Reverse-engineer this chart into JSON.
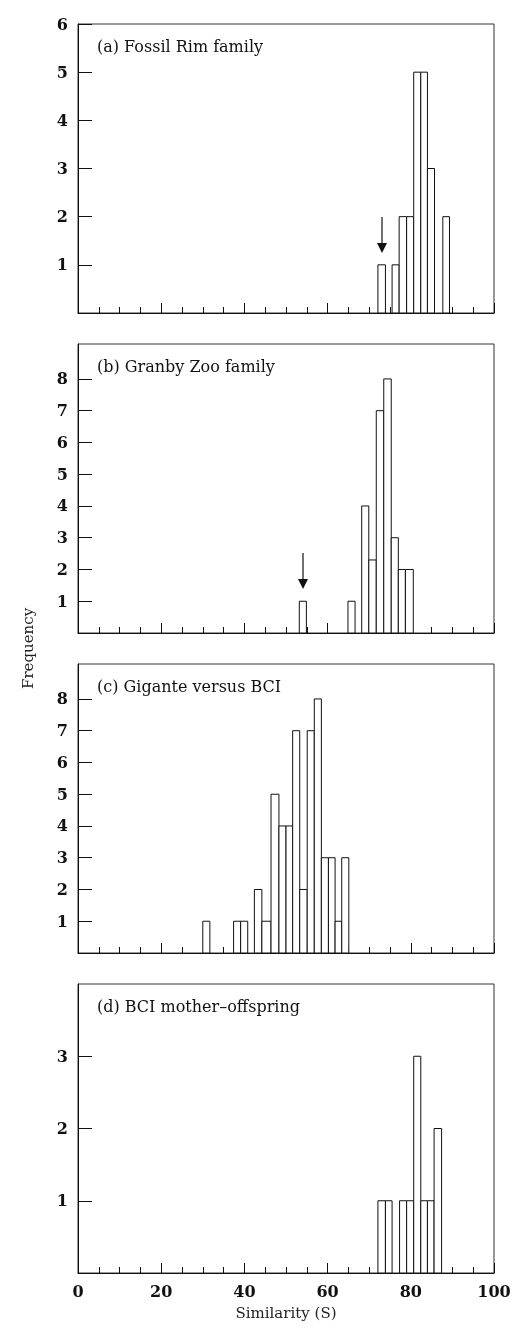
{
  "chart_data": [
    {
      "type": "histogram",
      "title": "(a) Fossil Rim family",
      "bins": [
        72.1,
        73.9,
        75.5,
        77.2,
        79.0,
        80.7,
        82.4,
        84.0,
        85.7,
        87.7,
        89.3
      ],
      "values": [
        1,
        0,
        1,
        2,
        2,
        5,
        5,
        3,
        0,
        2
      ],
      "color": "#ffffff",
      "xlim": [
        0,
        100
      ],
      "xticks": [
        0,
        {
          "value": 5,
          "label": null
        },
        {
          "value": 10,
          "label": null
        },
        {
          "value": 15,
          "label": null
        },
        20,
        {
          "value": 25,
          "label": null
        },
        {
          "value": 30,
          "label": null
        },
        {
          "value": 35,
          "label": null
        },
        40,
        {
          "value": 45,
          "label": null
        },
        {
          "value": 50,
          "label": null
        },
        {
          "value": 55,
          "label": null
        },
        60,
        {
          "value": 65,
          "label": null
        },
        {
          "value": 70,
          "label": null
        },
        {
          "value": 75,
          "label": null
        },
        80,
        {
          "value": 85,
          "label": null
        },
        {
          "value": 90,
          "label": null
        },
        {
          "value": 95,
          "label": null
        },
        100
      ],
      "ylim": [
        0,
        6
      ],
      "yticks": [
        1,
        2,
        3,
        4,
        5,
        6
      ],
      "tick_labels": "y",
      "grid": false
    },
    {
      "type": "histogram",
      "title": "(b) Granby Zoo family",
      "ylabel": "Frequency",
      "bins": [
        53.2,
        54.9,
        64.9,
        66.6,
        68.2,
        69.9,
        71.7,
        73.5,
        75.3,
        77.0,
        78.7,
        80.6
      ],
      "values": [
        1,
        0,
        1,
        0,
        4,
        2.3,
        7,
        8,
        3,
        2,
        2
      ],
      "color": "#ffffff",
      "xlim": [
        0,
        100
      ],
      "xticks": [
        0,
        {
          "value": 5,
          "label": null
        },
        {
          "value": 10,
          "label": null
        },
        {
          "value": 15,
          "label": null
        },
        20,
        {
          "value": 25,
          "label": null
        },
        {
          "value": 30,
          "label": null
        },
        {
          "value": 35,
          "label": null
        },
        40,
        {
          "value": 45,
          "label": null
        },
        {
          "value": 50,
          "label": null
        },
        {
          "value": 55,
          "label": null
        },
        60,
        {
          "value": 65,
          "label": null
        },
        {
          "value": 70,
          "label": null
        },
        {
          "value": 75,
          "label": null
        },
        80,
        {
          "value": 85,
          "label": null
        },
        {
          "value": 90,
          "label": null
        },
        {
          "value": 95,
          "label": null
        },
        100
      ],
      "ylim": [
        0,
        9.1
      ],
      "yticks": [
        1,
        2,
        3,
        4,
        5,
        6,
        7,
        8
      ],
      "tick_labels": "y",
      "grid": false
    },
    {
      "type": "histogram",
      "title": "(c) Gigante versus BCI",
      "bins": [
        30.0,
        31.7,
        37.4,
        39.1,
        40.8,
        42.4,
        44.2,
        46.4,
        48.3,
        50.0,
        51.6,
        53.3,
        55.1,
        56.8,
        58.5,
        60.2,
        61.8,
        63.4,
        65.1
      ],
      "values": [
        1,
        0,
        1,
        1,
        0,
        2,
        1,
        5,
        4,
        4,
        7,
        2,
        7,
        8,
        3,
        3,
        1,
        3
      ],
      "color": "#ffffff",
      "xlim": [
        0,
        100
      ],
      "xticks": [
        0,
        {
          "value": 5,
          "label": null
        },
        {
          "value": 10,
          "label": null
        },
        {
          "value": 15,
          "label": null
        },
        20,
        {
          "value": 25,
          "label": null
        },
        {
          "value": 30,
          "label": null
        },
        {
          "value": 35,
          "label": null
        },
        40,
        {
          "value": 45,
          "label": null
        },
        {
          "value": 50,
          "label": null
        },
        {
          "value": 55,
          "label": null
        },
        60,
        {
          "value": 65,
          "label": null
        },
        {
          "value": 70,
          "label": null
        },
        {
          "value": 75,
          "label": null
        },
        80,
        {
          "value": 85,
          "label": null
        },
        {
          "value": 90,
          "label": null
        },
        {
          "value": 95,
          "label": null
        },
        100
      ],
      "ylim": [
        0,
        9.1
      ],
      "yticks": [
        1,
        2,
        3,
        4,
        5,
        6,
        7,
        8
      ],
      "tick_labels": "y",
      "grid": false
    },
    {
      "type": "histogram",
      "title": "(d) BCI mother–offspring",
      "xlabel": "Similarity (S)",
      "bins": [
        72.1,
        73.9,
        75.5,
        77.3,
        79.0,
        80.7,
        82.4,
        84.0,
        85.6,
        87.4
      ],
      "values": [
        1,
        1,
        0,
        1,
        1,
        3,
        1,
        1,
        2
      ],
      "color": "#ffffff",
      "xlim": [
        0,
        100
      ],
      "xticks": [
        0,
        {
          "value": 5,
          "label": null
        },
        {
          "value": 10,
          "label": null
        },
        {
          "value": 15,
          "label": null
        },
        20,
        {
          "value": 25,
          "label": null
        },
        {
          "value": 30,
          "label": null
        },
        {
          "value": 35,
          "label": null
        },
        40,
        {
          "value": 45,
          "label": null
        },
        {
          "value": 50,
          "label": null
        },
        {
          "value": 55,
          "label": null
        },
        60,
        {
          "value": 65,
          "label": null
        },
        {
          "value": 70,
          "label": null
        },
        {
          "value": 75,
          "label": null
        },
        80,
        {
          "value": 85,
          "label": null
        },
        {
          "value": 90,
          "label": null
        },
        {
          "value": 95,
          "label": null
        },
        100
      ],
      "ylim": [
        0,
        4
      ],
      "yticks": [
        1,
        2,
        3
      ],
      "grid": false
    }
  ]
}
